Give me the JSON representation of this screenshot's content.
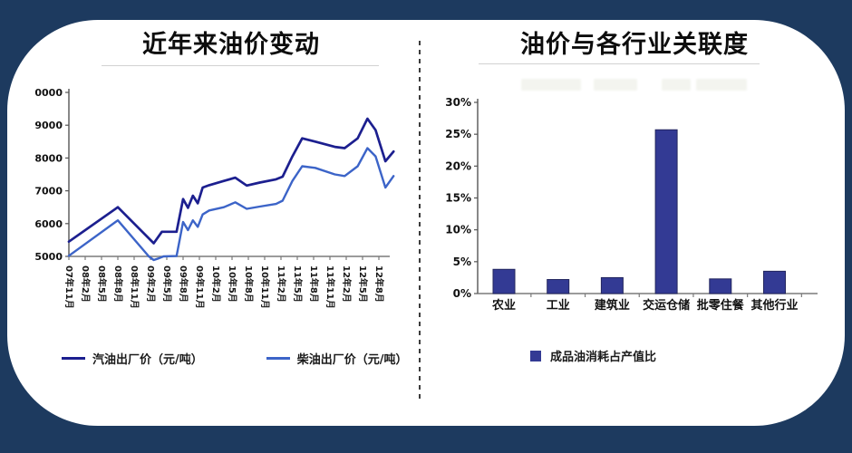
{
  "page": {
    "background_color": "#1d3a5f",
    "panel_color": "#ffffff"
  },
  "chart_data": [
    {
      "type": "line",
      "title": "近年来油价变动",
      "ylim": [
        5000,
        10000
      ],
      "y_ticks": [
        5000,
        6000,
        7000,
        8000,
        9000,
        10000
      ],
      "x_tick_labels": [
        "07年11月",
        "08年2月",
        "08年5月",
        "08年8月",
        "08年11月",
        "09年2月",
        "09年5月",
        "09年8月",
        "09年11月",
        "10年2月",
        "10年5月",
        "10年8月",
        "10年11月",
        "11年2月",
        "11年5月",
        "11年8月",
        "11年11月",
        "12年2月",
        "12年5月",
        "12年8月"
      ],
      "grid": false,
      "legend_position": "bottom",
      "axis_color": "#7a7a7a",
      "series": [
        {
          "name": "汽油出厂价（元/吨）",
          "color": "#1c1f8f",
          "points": [
            [
              0,
              5450
            ],
            [
              3,
              6500
            ],
            [
              5.2,
              5400
            ],
            [
              5.7,
              5750
            ],
            [
              6.6,
              5750
            ],
            [
              7.0,
              6750
            ],
            [
              7.3,
              6480
            ],
            [
              7.6,
              6850
            ],
            [
              7.9,
              6620
            ],
            [
              8.2,
              7100
            ],
            [
              8.6,
              7170
            ],
            [
              9.5,
              7300
            ],
            [
              10.2,
              7400
            ],
            [
              10.9,
              7160
            ],
            [
              11.7,
              7250
            ],
            [
              12.7,
              7350
            ],
            [
              13.1,
              7430
            ],
            [
              13.7,
              8050
            ],
            [
              14.3,
              8600
            ],
            [
              15.1,
              8500
            ],
            [
              16.3,
              8340
            ],
            [
              16.9,
              8300
            ],
            [
              17.7,
              8600
            ],
            [
              18.3,
              9200
            ],
            [
              18.8,
              8850
            ],
            [
              19.4,
              7900
            ],
            [
              19.9,
              8200
            ]
          ]
        },
        {
          "name": "柴油出厂价（元/吨）",
          "color": "#3c64c8",
          "points": [
            [
              0,
              5020
            ],
            [
              3,
              6100
            ],
            [
              4.9,
              5000
            ],
            [
              5.2,
              4890
            ],
            [
              5.5,
              4940
            ],
            [
              5.8,
              5000
            ],
            [
              6.6,
              5010
            ],
            [
              7.0,
              6050
            ],
            [
              7.3,
              5800
            ],
            [
              7.6,
              6100
            ],
            [
              7.9,
              5900
            ],
            [
              8.2,
              6280
            ],
            [
              8.6,
              6400
            ],
            [
              9.5,
              6500
            ],
            [
              10.2,
              6650
            ],
            [
              10.9,
              6450
            ],
            [
              11.7,
              6520
            ],
            [
              12.7,
              6600
            ],
            [
              13.1,
              6700
            ],
            [
              13.7,
              7300
            ],
            [
              14.3,
              7750
            ],
            [
              15.1,
              7700
            ],
            [
              16.3,
              7500
            ],
            [
              16.9,
              7450
            ],
            [
              17.7,
              7750
            ],
            [
              18.3,
              8300
            ],
            [
              18.8,
              8050
            ],
            [
              19.4,
              7100
            ],
            [
              19.9,
              7450
            ]
          ]
        }
      ]
    },
    {
      "type": "bar",
      "title": "油价与各行业关联度",
      "categories": [
        "农业",
        "工业",
        "建筑业",
        "交运仓储",
        "批零住餐",
        "其他行业"
      ],
      "values": [
        3.8,
        2.2,
        2.5,
        25.7,
        2.3,
        3.5
      ],
      "value_unit": "%",
      "ylim": [
        0,
        30
      ],
      "y_ticks": [
        "0%",
        "5%",
        "10%",
        "15%",
        "20%",
        "25%",
        "30%"
      ],
      "bar_color": "#333a94",
      "bar_edge_color": "#23265e",
      "axis_color": "#7a7a7a",
      "legend": "成品油消耗占产值比",
      "legend_position": "bottom"
    }
  ]
}
